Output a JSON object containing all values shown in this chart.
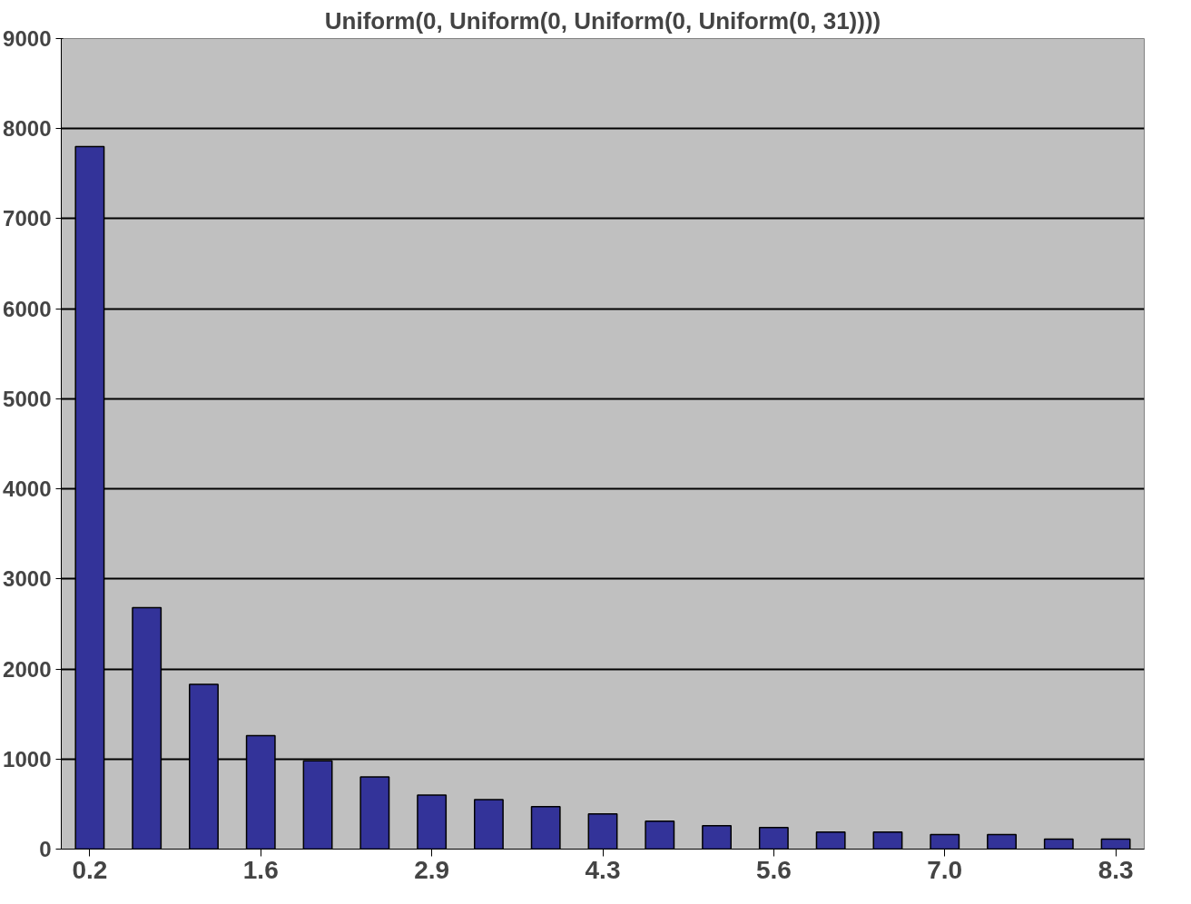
{
  "chart_data": {
    "type": "bar",
    "title": "Uniform(0, Uniform(0, Uniform(0, Uniform(0, 31))))",
    "categories": [
      "0.2",
      null,
      null,
      "1.6",
      null,
      null,
      "2.9",
      null,
      null,
      "4.3",
      null,
      null,
      "5.6",
      null,
      null,
      "7.0",
      null,
      null,
      "8.3"
    ],
    "values": [
      7800,
      2680,
      1830,
      1260,
      980,
      800,
      600,
      550,
      470,
      390,
      310,
      260,
      240,
      190,
      190,
      160,
      160,
      110,
      110
    ],
    "color": "#333399",
    "ylim": [
      0,
      9000
    ],
    "yticks": [
      0,
      1000,
      2000,
      3000,
      4000,
      5000,
      6000,
      7000,
      8000,
      9000
    ],
    "grid": "y"
  }
}
